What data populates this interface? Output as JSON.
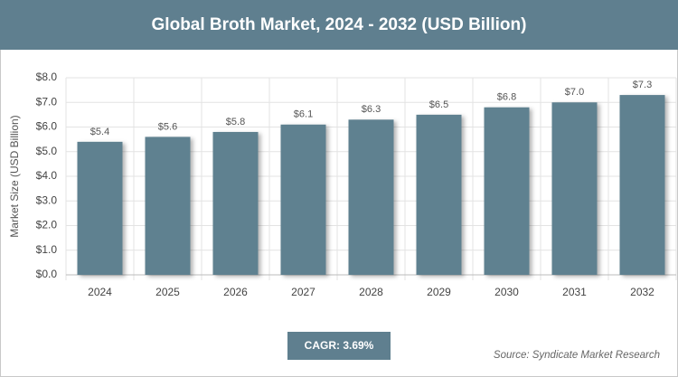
{
  "chart_data": {
    "type": "bar",
    "title": "Global Broth Market, 2024 - 2032 (USD Billion)",
    "y_label": "Market Size (USD Billion)",
    "categories": [
      "2024",
      "2025",
      "2026",
      "2027",
      "2028",
      "2029",
      "2030",
      "2031",
      "2032"
    ],
    "values": [
      5.4,
      5.6,
      5.8,
      6.1,
      6.3,
      6.5,
      6.8,
      7.0,
      7.3
    ],
    "value_labels": [
      "$5.4",
      "$5.6",
      "$5.8",
      "$6.1",
      "$6.3",
      "$6.5",
      "$6.8",
      "$7.0",
      "$7.3"
    ],
    "color": "#5f8190",
    "ylim": [
      0,
      8
    ],
    "yticks": [
      {
        "value": 0,
        "label": "$0.0"
      },
      {
        "value": 1,
        "label": "$1.0"
      },
      {
        "value": 2,
        "label": "$2.0"
      },
      {
        "value": 3,
        "label": "$3.0"
      },
      {
        "value": 4,
        "label": "$4.0"
      },
      {
        "value": 5,
        "label": "$5.0"
      },
      {
        "value": 6,
        "label": "$6.0"
      },
      {
        "value": 7,
        "label": "$7.0"
      },
      {
        "value": 8,
        "label": "$8.0"
      }
    ],
    "grid": true,
    "cagr": "CAGR: 3.69%",
    "source": "Source: Syndicate Market Research"
  }
}
